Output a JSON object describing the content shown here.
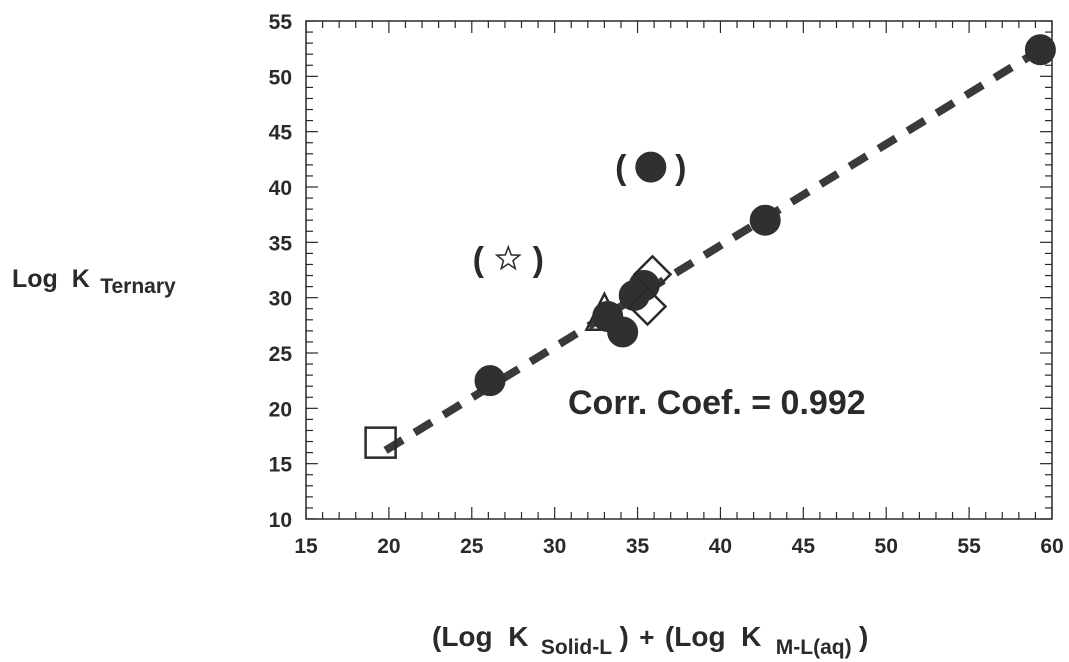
{
  "chart_data": {
    "type": "scatter",
    "ylabel": {
      "main": "Log  K",
      "sub": "Ternary"
    },
    "xlabel": {
      "part1_open": "(Log  K",
      "part1_sub": "Solid-L",
      "part1_close": ")",
      "plus": "+",
      "part2_open": "(Log  K",
      "part2_sub": "M-L(aq)",
      "part2_close": ")"
    },
    "xlim": [
      15,
      60
    ],
    "ylim": [
      10,
      55
    ],
    "xticks": [
      15,
      20,
      25,
      30,
      35,
      40,
      45,
      50,
      55,
      60
    ],
    "yticks": [
      10,
      15,
      20,
      25,
      30,
      35,
      40,
      45,
      50,
      55
    ],
    "x_minor_step": 1,
    "y_minor_step": 1,
    "grid": false,
    "annotation": "Corr. Coef. = 0.992",
    "fit_line": {
      "style": "dashed",
      "x": [
        19.8,
        59.3
      ],
      "y": [
        16.2,
        52.4
      ]
    },
    "points": [
      {
        "marker": "square",
        "x": 19.5,
        "y": 16.9,
        "filled": false,
        "parenthesized": false
      },
      {
        "marker": "circle",
        "x": 26.1,
        "y": 22.5,
        "filled": true,
        "parenthesized": false
      },
      {
        "marker": "triangle",
        "x": 33.0,
        "y": 28.4,
        "filled": false,
        "parenthesized": false
      },
      {
        "marker": "circle",
        "x": 33.2,
        "y": 28.3,
        "filled": true,
        "parenthesized": false
      },
      {
        "marker": "circle",
        "x": 34.1,
        "y": 26.9,
        "filled": true,
        "parenthesized": false
      },
      {
        "marker": "circle",
        "x": 34.8,
        "y": 30.2,
        "filled": true,
        "parenthesized": false
      },
      {
        "marker": "circle",
        "x": 35.4,
        "y": 31.1,
        "filled": true,
        "parenthesized": false
      },
      {
        "marker": "diamond",
        "x": 35.6,
        "y": 29.2,
        "filled": false,
        "parenthesized": false
      },
      {
        "marker": "diamond",
        "x": 35.9,
        "y": 32.1,
        "filled": false,
        "parenthesized": false
      },
      {
        "marker": "circle",
        "x": 42.7,
        "y": 37.0,
        "filled": true,
        "parenthesized": false
      },
      {
        "marker": "circle",
        "x": 59.3,
        "y": 52.4,
        "filled": true,
        "parenthesized": false
      },
      {
        "marker": "circle",
        "x": 35.8,
        "y": 41.8,
        "filled": true,
        "parenthesized": true
      },
      {
        "marker": "star",
        "x": 27.2,
        "y": 33.5,
        "filled": false,
        "parenthesized": true
      }
    ],
    "colors": {
      "ink": "#2a2a2a",
      "marker_fill": "#303030",
      "background": "#ffffff"
    }
  }
}
